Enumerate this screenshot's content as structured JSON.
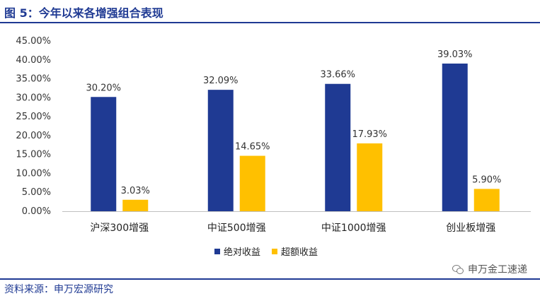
{
  "figure": {
    "title": "图 5：今年以来各增强组合表现",
    "source": "资料来源：申万宏源研究",
    "watermark": "申万金工速递"
  },
  "chart_data": {
    "type": "bar",
    "categories": [
      "沪深300增强",
      "中证500增强",
      "中证1000增强",
      "创业板增强"
    ],
    "series": [
      {
        "name": "绝对收益",
        "values": [
          30.2,
          32.09,
          33.66,
          39.03
        ],
        "labels": [
          "30.20%",
          "32.09%",
          "33.66%",
          "39.03%"
        ],
        "color": "#1f3a93"
      },
      {
        "name": "超额收益",
        "values": [
          3.03,
          14.65,
          17.93,
          5.9
        ],
        "labels": [
          "3.03%",
          "14.65%",
          "17.93%",
          "5.90%"
        ],
        "color": "#ffc000"
      }
    ],
    "ylim": [
      0,
      45
    ],
    "yticks": [
      "0.00%",
      "5.00%",
      "10.00%",
      "15.00%",
      "20.00%",
      "25.00%",
      "30.00%",
      "35.00%",
      "40.00%",
      "45.00%"
    ],
    "grid": false,
    "legend": "bottom"
  }
}
